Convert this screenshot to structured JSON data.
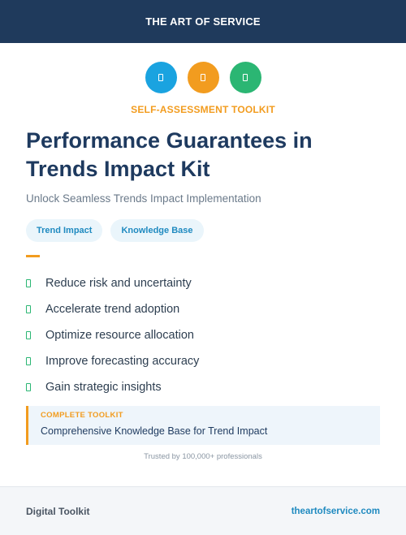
{
  "header": {
    "brand": "THE ART OF SERVICE"
  },
  "icons": [
    {
      "name": "blue-doc-icon",
      "color": "#1aa3e0"
    },
    {
      "name": "orange-doc-icon",
      "color": "#f29c1f"
    },
    {
      "name": "green-doc-icon",
      "color": "#2bb673"
    }
  ],
  "hero": {
    "eyebrow": "SELF-ASSESSMENT TOOLKIT",
    "title": "Performance Guarantees in Trends Impact Kit",
    "subtitle": "Unlock Seamless Trends Impact Implementation"
  },
  "tags": [
    "Trend Impact",
    "Knowledge Base"
  ],
  "benefits": [
    "Reduce risk and uncertainty",
    "Accelerate trend adoption",
    "Optimize resource allocation",
    "Improve forecasting accuracy",
    "Gain strategic insights"
  ],
  "callout": {
    "label": "COMPLETE TOOLKIT",
    "text": "Comprehensive Knowledge Base for Trend Impact"
  },
  "trust": "Trusted by 100,000+ professionals",
  "footer": {
    "left": "Digital Toolkit",
    "right": "theartofservice.com"
  },
  "colors": {
    "navy": "#1f3a5c",
    "accent_orange": "#f29c1f",
    "accent_blue": "#1aa3e0",
    "accent_green": "#2bb673"
  }
}
